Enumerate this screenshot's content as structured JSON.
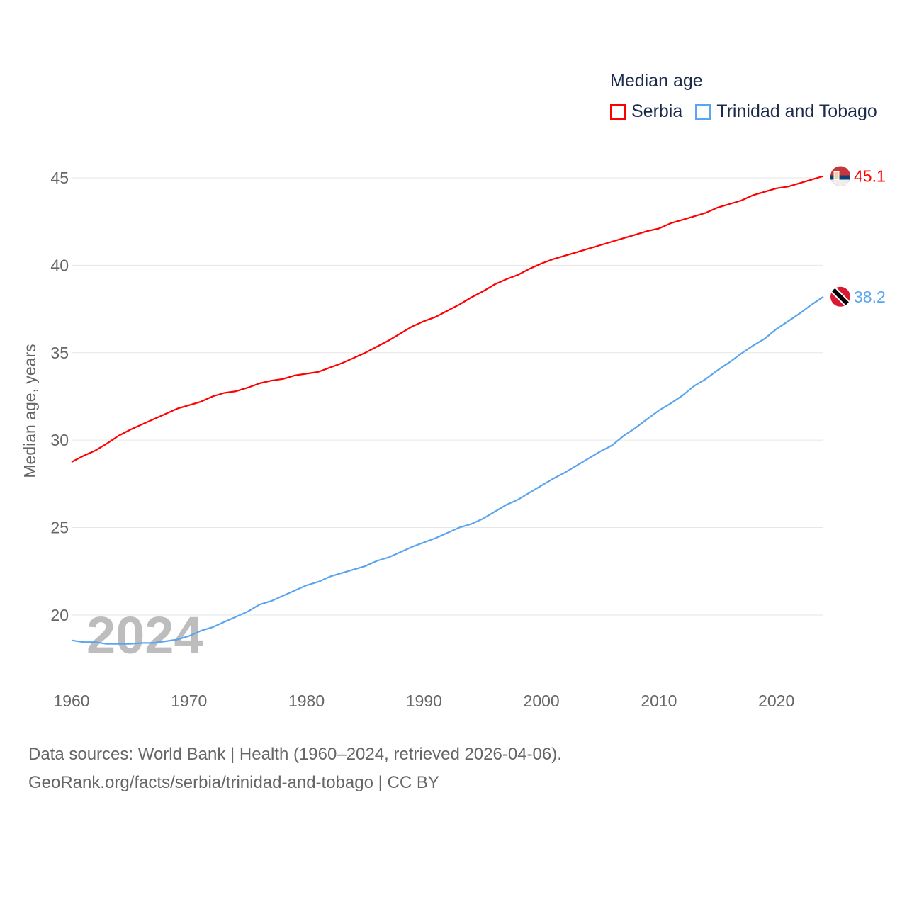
{
  "chart_data": {
    "type": "line",
    "title": "Median age",
    "xlabel": "",
    "ylabel": "Median age, years",
    "xlim": [
      1960,
      2024
    ],
    "ylim": [
      17,
      47
    ],
    "xticks": [
      1960,
      1970,
      1980,
      1990,
      2000,
      2010,
      2020
    ],
    "yticks": [
      20,
      25,
      30,
      35,
      40,
      45
    ],
    "grid": true,
    "legend_position": "top-right",
    "year_label": "2024",
    "x": [
      1960,
      1961,
      1962,
      1963,
      1964,
      1965,
      1966,
      1967,
      1968,
      1969,
      1970,
      1971,
      1972,
      1973,
      1974,
      1975,
      1976,
      1977,
      1978,
      1979,
      1980,
      1981,
      1982,
      1983,
      1984,
      1985,
      1986,
      1987,
      1988,
      1989,
      1990,
      1991,
      1992,
      1993,
      1994,
      1995,
      1996,
      1997,
      1998,
      1999,
      2000,
      2001,
      2002,
      2003,
      2004,
      2005,
      2006,
      2007,
      2008,
      2009,
      2010,
      2011,
      2012,
      2013,
      2014,
      2015,
      2016,
      2017,
      2018,
      2019,
      2020,
      2021,
      2022,
      2023,
      2024
    ],
    "series": [
      {
        "name": "Serbia",
        "color": "#ff0000",
        "end_label": "45.1",
        "values": [
          28.75,
          29.1,
          29.4,
          29.8,
          30.25,
          30.6,
          30.9,
          31.2,
          31.5,
          31.8,
          32.0,
          32.2,
          32.5,
          32.7,
          32.8,
          33.0,
          33.25,
          33.4,
          33.5,
          33.7,
          33.8,
          33.9,
          34.15,
          34.4,
          34.7,
          35.0,
          35.35,
          35.7,
          36.1,
          36.5,
          36.8,
          37.05,
          37.4,
          37.75,
          38.15,
          38.5,
          38.9,
          39.2,
          39.45,
          39.8,
          40.1,
          40.35,
          40.55,
          40.75,
          40.95,
          41.15,
          41.35,
          41.55,
          41.75,
          41.95,
          42.1,
          42.4,
          42.6,
          42.8,
          43.0,
          43.3,
          43.5,
          43.7,
          44.0,
          44.2,
          44.4,
          44.5,
          44.7,
          44.9,
          45.1
        ]
      },
      {
        "name": "Trinidad and Tobago",
        "color": "#5aa5ee",
        "end_label": "38.2",
        "values": [
          18.55,
          18.45,
          18.45,
          18.35,
          18.35,
          18.35,
          18.4,
          18.4,
          18.5,
          18.6,
          18.8,
          19.1,
          19.3,
          19.6,
          19.9,
          20.2,
          20.6,
          20.8,
          21.1,
          21.4,
          21.7,
          21.9,
          22.2,
          22.4,
          22.6,
          22.8,
          23.1,
          23.3,
          23.6,
          23.9,
          24.15,
          24.4,
          24.7,
          25.0,
          25.2,
          25.5,
          25.9,
          26.3,
          26.6,
          27.0,
          27.4,
          27.8,
          28.15,
          28.55,
          28.95,
          29.35,
          29.7,
          30.25,
          30.7,
          31.2,
          31.7,
          32.1,
          32.55,
          33.1,
          33.5,
          34.0,
          34.45,
          34.95,
          35.4,
          35.8,
          36.35,
          36.8,
          37.25,
          37.75,
          38.2
        ]
      }
    ]
  },
  "source": {
    "line1": "Data sources: World Bank | Health (1960–2024, retrieved 2026-04-06).",
    "line2": "GeoRank.org/facts/serbia/trinidad-and-tobago | CC BY"
  }
}
